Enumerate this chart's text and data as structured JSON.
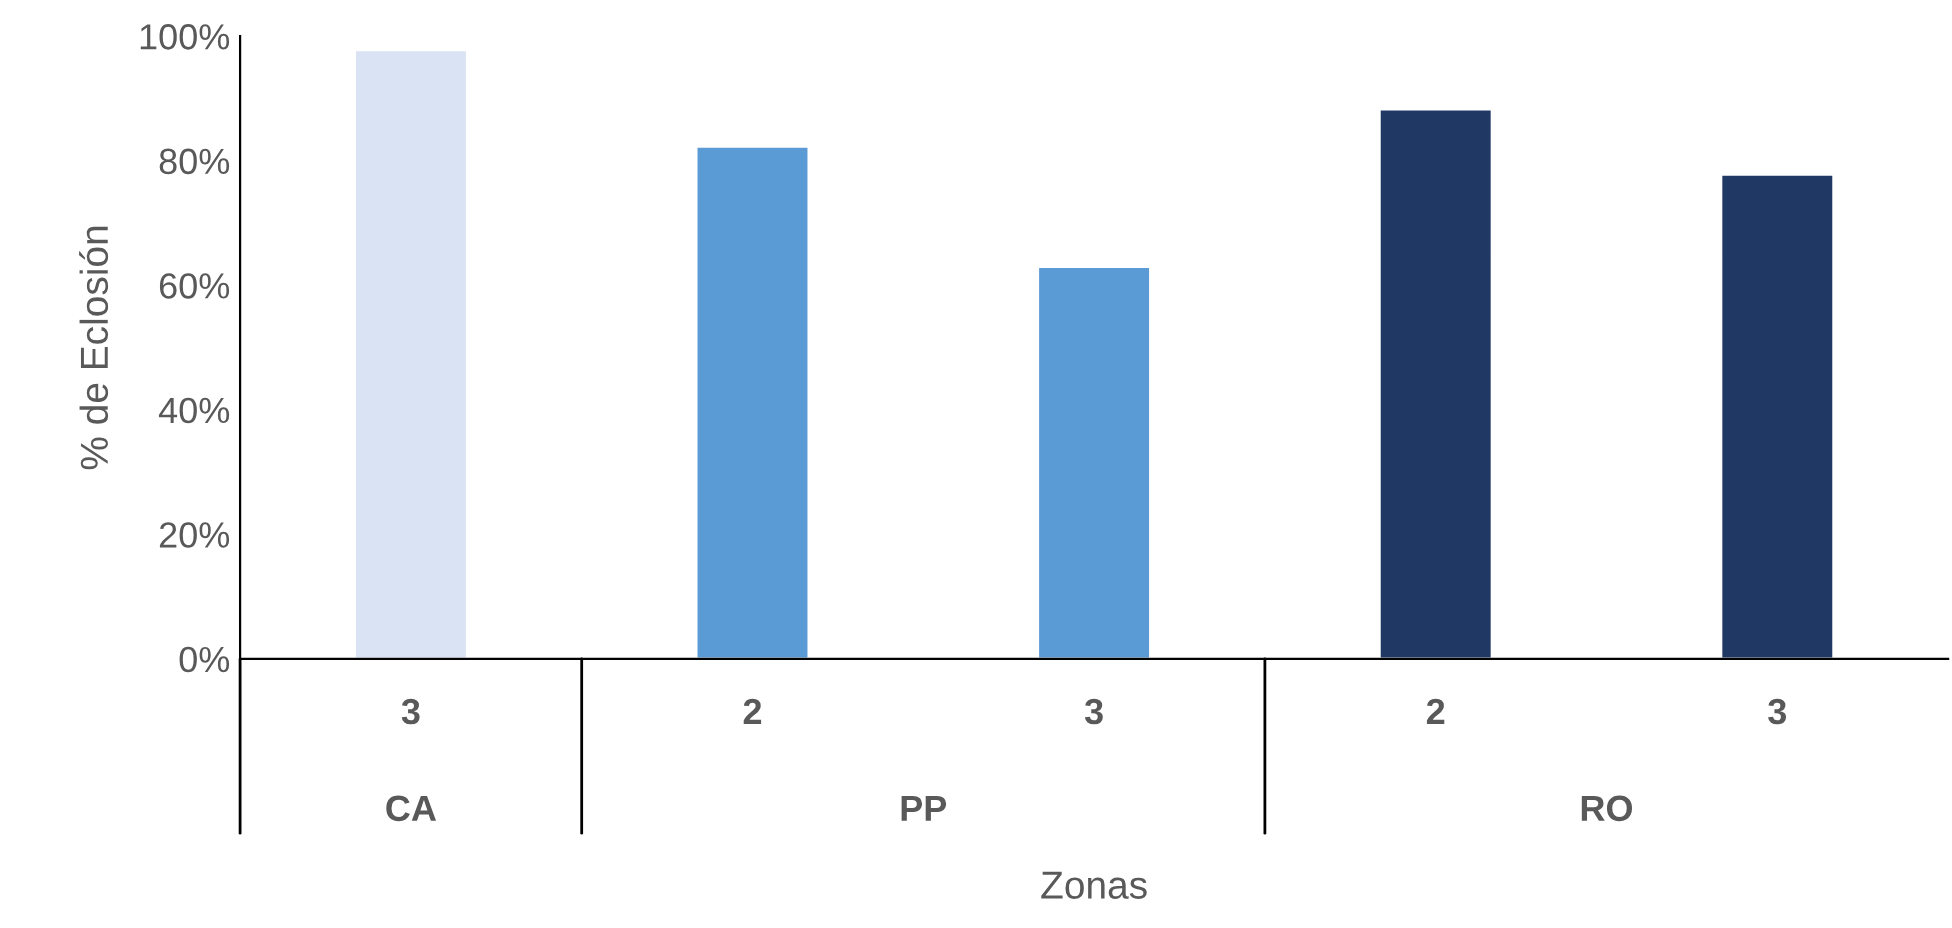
{
  "chart_data": {
    "type": "bar",
    "xlabel": "Zonas",
    "ylabel": "% de Eclosión",
    "categories": [
      "3",
      "2",
      "3",
      "2",
      "3"
    ],
    "values": [
      97.8,
      82.3,
      63.0,
      88.3,
      77.8
    ],
    "colors": [
      "#dae3f3",
      "#5b9bd5",
      "#5b9bd5",
      "#203864",
      "#203864"
    ],
    "ylim": [
      0,
      100
    ],
    "yticks": [
      {
        "value": 0,
        "label": "0%"
      },
      {
        "value": 20,
        "label": "20%"
      },
      {
        "value": 40,
        "label": "40%"
      },
      {
        "value": 60,
        "label": "60%"
      },
      {
        "value": 80,
        "label": "80%"
      },
      {
        "value": 100,
        "label": "100%"
      }
    ],
    "annotations": [
      "CA",
      "PP",
      "RO"
    ],
    "grid": false,
    "legend": false
  }
}
